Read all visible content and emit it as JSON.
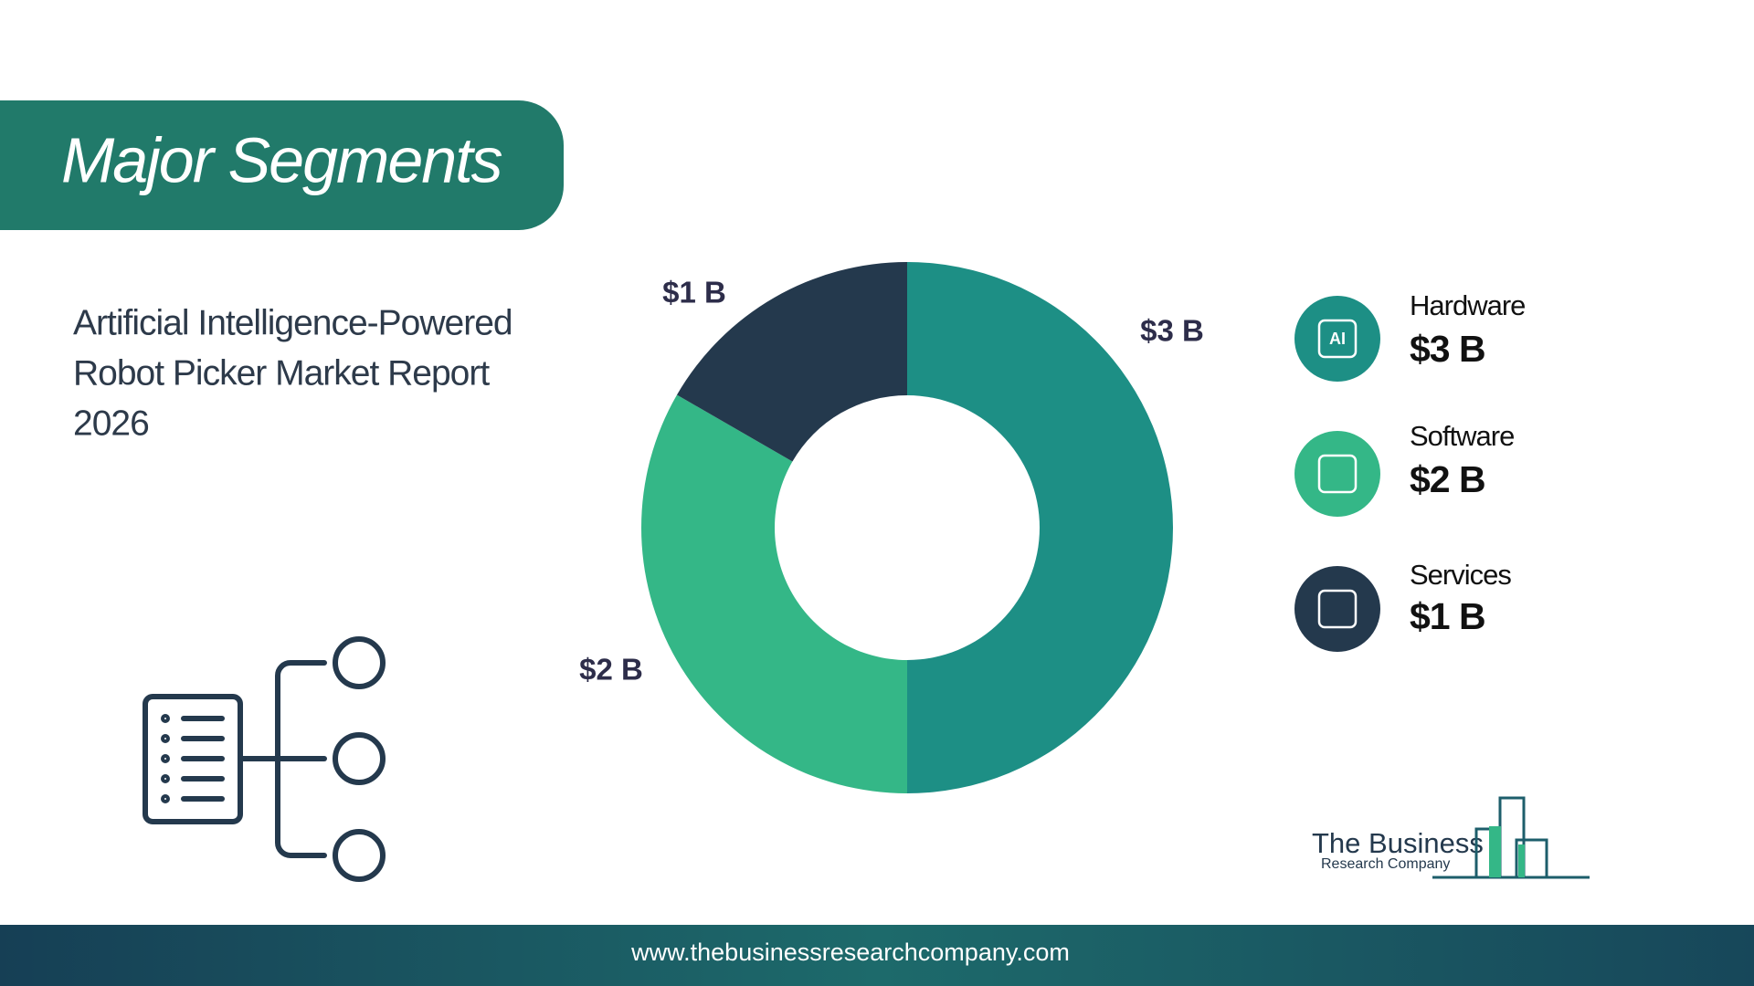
{
  "header": {
    "title": "Major Segments"
  },
  "subtitle_lines": [
    "Artificial Intelligence-Powered",
    "Robot Picker Market Report",
    "2026"
  ],
  "chart_data": {
    "type": "donut",
    "categories": [
      "Hardware",
      "Software",
      "Services"
    ],
    "values": [
      3,
      2,
      1
    ],
    "value_labels": [
      "$3 B",
      "$2 B",
      "$1 B"
    ],
    "colors": [
      "#1d8f85",
      "#34b787",
      "#24394d"
    ]
  },
  "hardware_icon_text": "AI",
  "logo": {
    "line1": "The Business",
    "line2": "Research Company"
  },
  "footer": {
    "url": "www.thebusinessresearchcompany.com"
  }
}
